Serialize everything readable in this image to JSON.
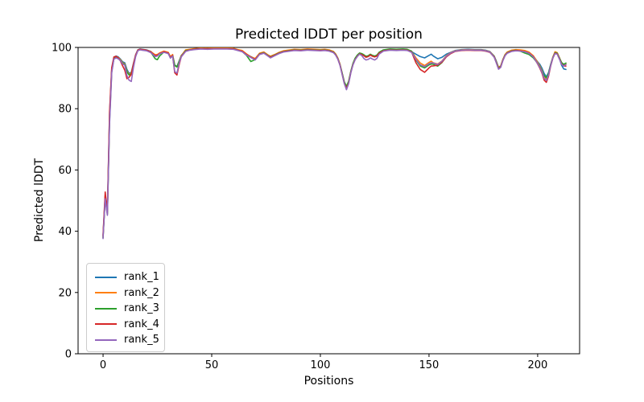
{
  "figure": {
    "title": "Predicted lDDT per position",
    "xlabel": "Positions",
    "ylabel": "Predicted lDDT"
  },
  "chart_data": {
    "type": "line",
    "title": "Predicted lDDT per position",
    "xlabel": "Positions",
    "ylabel": "Predicted lDDT",
    "xlim": [
      -11.5,
      219.3
    ],
    "ylim": [
      0,
      100
    ],
    "xticks": [
      0,
      50,
      100,
      150,
      200
    ],
    "yticks": [
      0,
      20,
      40,
      60,
      80,
      100
    ],
    "grid": false,
    "legend_position": "lower left",
    "background": "#ffffff",
    "spine_color": "#000000",
    "x": [
      0,
      1,
      2,
      3,
      4,
      5,
      6,
      7,
      8,
      9,
      10,
      11,
      12,
      13,
      14,
      15,
      16,
      17,
      18,
      20,
      22,
      24,
      25,
      26,
      28,
      30,
      31,
      32,
      33,
      34,
      35,
      36,
      38,
      40,
      42,
      45,
      48,
      51,
      54,
      57,
      60,
      62,
      64,
      66,
      68,
      70,
      72,
      74,
      76,
      77,
      79,
      81,
      83,
      85,
      88,
      91,
      94,
      97,
      100,
      102,
      104,
      106,
      107,
      108,
      109,
      110,
      111,
      112,
      113,
      114,
      115,
      116,
      117,
      118,
      119,
      120,
      121,
      122,
      123,
      124,
      125,
      126,
      127,
      129,
      132,
      135,
      138,
      140,
      142,
      144,
      146,
      148,
      150,
      151,
      152,
      154,
      156,
      158,
      160,
      162,
      165,
      168,
      171,
      174,
      176,
      178,
      180,
      181,
      182,
      183,
      184,
      185,
      186,
      188,
      190,
      192,
      194,
      196,
      198,
      200,
      201,
      202,
      203,
      204,
      205,
      206,
      207,
      208,
      209,
      210,
      211,
      212,
      213
    ],
    "series": [
      {
        "name": "rank_1",
        "color": "#1f77b4",
        "values": [
          38.3,
          51.6,
          46.2,
          78.0,
          93.0,
          96.8,
          97.2,
          96.9,
          96.2,
          95.3,
          95.0,
          92.8,
          91.5,
          91.9,
          94.8,
          97.6,
          99.2,
          99.5,
          99.4,
          99.2,
          98.7,
          97.2,
          97.4,
          98.1,
          98.7,
          98.3,
          96.9,
          97.6,
          94.2,
          93.8,
          95.6,
          97.4,
          98.9,
          99.3,
          99.5,
          99.7,
          99.6,
          99.7,
          99.7,
          99.7,
          99.6,
          99.2,
          98.9,
          97.8,
          97.0,
          96.3,
          98.0,
          98.4,
          97.4,
          97.0,
          97.6,
          98.3,
          98.8,
          99.0,
          99.3,
          99.2,
          99.4,
          99.3,
          99.2,
          99.3,
          99.1,
          98.6,
          97.8,
          96.5,
          94.5,
          91.5,
          88.5,
          87.0,
          88.7,
          92.0,
          94.6,
          96.3,
          97.3,
          98.0,
          97.8,
          97.4,
          96.9,
          97.1,
          97.6,
          97.2,
          97.0,
          97.3,
          98.2,
          99.0,
          99.3,
          99.2,
          99.3,
          99.2,
          98.6,
          97.8,
          97.0,
          96.6,
          97.4,
          97.8,
          97.2,
          96.3,
          96.8,
          97.8,
          98.4,
          99.0,
          99.3,
          99.4,
          99.3,
          99.3,
          99.1,
          98.7,
          97.2,
          95.5,
          93.5,
          93.9,
          96.0,
          97.6,
          98.4,
          99.0,
          99.2,
          99.1,
          98.9,
          98.4,
          97.2,
          95.3,
          94.5,
          93.2,
          91.5,
          90.4,
          91.8,
          94.5,
          96.8,
          98.2,
          98.0,
          96.5,
          94.2,
          93.0,
          92.8
        ]
      },
      {
        "name": "rank_2",
        "color": "#ff7f0e",
        "values": [
          38.0,
          51.3,
          45.8,
          77.0,
          92.6,
          96.6,
          97.0,
          96.7,
          96.0,
          95.0,
          94.6,
          92.2,
          91.2,
          91.6,
          94.5,
          97.4,
          99.1,
          99.4,
          99.3,
          99.1,
          98.6,
          97.6,
          97.7,
          98.2,
          98.8,
          98.4,
          97.0,
          97.7,
          94.0,
          93.7,
          95.4,
          97.3,
          99.2,
          99.4,
          99.6,
          99.8,
          99.7,
          99.8,
          99.8,
          99.8,
          99.7,
          99.3,
          99.0,
          97.9,
          96.9,
          96.4,
          98.1,
          98.5,
          97.5,
          97.1,
          97.7,
          98.4,
          98.9,
          99.1,
          99.4,
          99.3,
          99.5,
          99.4,
          99.3,
          99.4,
          99.2,
          98.7,
          97.9,
          96.6,
          94.6,
          91.6,
          88.6,
          87.1,
          88.8,
          92.1,
          94.7,
          96.4,
          97.4,
          98.1,
          97.9,
          97.5,
          97.0,
          97.2,
          97.7,
          97.3,
          97.1,
          97.4,
          98.3,
          99.1,
          99.4,
          99.3,
          99.4,
          99.3,
          98.7,
          96.6,
          94.9,
          94.1,
          95.1,
          95.5,
          95.0,
          94.6,
          95.6,
          97.3,
          98.3,
          98.9,
          99.2,
          99.3,
          99.2,
          99.2,
          99.0,
          98.6,
          97.1,
          95.3,
          93.5,
          94.0,
          96.1,
          97.7,
          98.5,
          99.1,
          99.3,
          99.2,
          99.0,
          98.5,
          97.3,
          95.1,
          93.9,
          92.4,
          90.6,
          89.7,
          91.2,
          94.3,
          96.9,
          98.6,
          98.3,
          96.7,
          95.0,
          94.2,
          94.6
        ]
      },
      {
        "name": "rank_3",
        "color": "#2ca02c",
        "values": [
          37.8,
          51.0,
          45.5,
          76.0,
          92.2,
          96.4,
          96.8,
          96.5,
          95.8,
          94.8,
          94.4,
          92.0,
          91.0,
          91.4,
          94.3,
          97.2,
          99.0,
          99.3,
          99.2,
          99.0,
          98.4,
          96.3,
          96.0,
          97.2,
          98.5,
          98.1,
          96.6,
          97.3,
          94.1,
          93.6,
          95.3,
          97.1,
          99.0,
          99.2,
          99.4,
          99.6,
          99.5,
          99.6,
          99.6,
          99.6,
          99.5,
          99.1,
          98.7,
          97.4,
          95.4,
          96.0,
          97.9,
          98.3,
          97.3,
          96.9,
          97.5,
          98.2,
          98.7,
          98.9,
          99.2,
          99.1,
          99.3,
          99.2,
          99.1,
          99.2,
          99.0,
          98.5,
          97.7,
          96.4,
          94.4,
          91.7,
          88.8,
          87.3,
          89.0,
          92.2,
          94.8,
          96.5,
          97.5,
          98.2,
          98.0,
          97.6,
          97.1,
          97.3,
          97.8,
          97.4,
          97.2,
          97.5,
          98.4,
          99.2,
          99.5,
          99.4,
          99.5,
          99.4,
          98.8,
          95.9,
          93.9,
          93.3,
          94.3,
          94.6,
          94.5,
          93.9,
          95.1,
          97.0,
          98.1,
          98.8,
          99.1,
          99.2,
          99.1,
          99.1,
          98.9,
          98.5,
          97.0,
          95.2,
          93.3,
          93.8,
          95.9,
          97.5,
          98.3,
          98.9,
          99.1,
          98.8,
          98.2,
          97.7,
          96.6,
          94.8,
          93.6,
          92.1,
          90.8,
          90.1,
          91.5,
          94.4,
          96.7,
          98.3,
          98.1,
          96.6,
          95.1,
          94.5,
          94.9
        ]
      },
      {
        "name": "rank_4",
        "color": "#d62728",
        "values": [
          38.6,
          52.8,
          46.6,
          79.0,
          93.4,
          96.9,
          97.1,
          96.6,
          95.6,
          94.0,
          92.6,
          89.8,
          90.3,
          91.2,
          94.6,
          97.5,
          99.1,
          99.4,
          99.3,
          99.1,
          98.5,
          97.3,
          97.5,
          98.0,
          98.6,
          98.2,
          96.7,
          97.4,
          91.7,
          91.0,
          94.3,
          97.0,
          98.8,
          99.2,
          99.4,
          99.6,
          99.5,
          99.6,
          99.6,
          99.6,
          99.5,
          99.1,
          98.8,
          97.7,
          96.8,
          96.1,
          97.8,
          98.2,
          97.2,
          96.8,
          97.4,
          98.1,
          98.6,
          98.8,
          99.1,
          99.0,
          99.2,
          99.1,
          99.0,
          99.1,
          98.9,
          98.4,
          97.6,
          96.3,
          94.3,
          91.3,
          88.3,
          86.6,
          88.4,
          91.8,
          94.4,
          96.1,
          97.1,
          97.9,
          97.7,
          97.3,
          96.8,
          97.0,
          97.5,
          97.1,
          96.9,
          97.2,
          98.1,
          98.9,
          99.2,
          99.1,
          99.2,
          99.1,
          98.5,
          95.0,
          92.8,
          91.9,
          93.3,
          93.9,
          94.0,
          94.2,
          95.2,
          96.9,
          98.0,
          98.7,
          99.0,
          99.1,
          99.0,
          99.0,
          98.8,
          98.4,
          96.9,
          95.0,
          93.1,
          93.6,
          95.8,
          97.4,
          98.2,
          98.8,
          99.0,
          98.9,
          98.7,
          98.2,
          97.0,
          94.6,
          93.2,
          91.6,
          89.3,
          88.6,
          90.6,
          94.0,
          96.5,
          98.1,
          97.9,
          96.3,
          94.6,
          94.0,
          93.9
        ]
      },
      {
        "name": "rank_5",
        "color": "#9467bd",
        "values": [
          37.6,
          50.6,
          45.2,
          75.0,
          91.8,
          96.2,
          96.6,
          96.3,
          95.7,
          94.6,
          94.2,
          90.8,
          89.3,
          88.9,
          93.5,
          97.0,
          98.9,
          99.2,
          99.1,
          98.9,
          98.3,
          97.0,
          97.2,
          97.9,
          98.4,
          98.0,
          96.5,
          97.2,
          92.1,
          91.6,
          94.8,
          96.9,
          98.7,
          99.1,
          99.3,
          99.5,
          99.4,
          99.5,
          99.5,
          99.5,
          99.4,
          99.0,
          98.6,
          97.5,
          96.7,
          95.9,
          97.7,
          98.1,
          97.1,
          96.6,
          97.3,
          98.0,
          98.5,
          98.7,
          99.0,
          98.9,
          99.1,
          99.0,
          98.9,
          99.0,
          98.8,
          98.3,
          97.5,
          96.2,
          94.2,
          91.2,
          88.2,
          86.2,
          88.2,
          91.7,
          94.3,
          96.0,
          97.0,
          97.8,
          97.4,
          96.4,
          95.9,
          96.1,
          96.6,
          96.2,
          95.9,
          96.4,
          97.8,
          98.8,
          99.1,
          99.0,
          99.1,
          99.0,
          98.4,
          96.1,
          94.3,
          93.7,
          94.7,
          95.0,
          94.9,
          94.4,
          95.5,
          97.1,
          98.2,
          98.8,
          99.1,
          99.2,
          99.1,
          99.1,
          98.9,
          98.5,
          96.8,
          94.9,
          92.9,
          93.5,
          95.7,
          97.3,
          98.1,
          98.7,
          98.9,
          98.8,
          98.6,
          98.1,
          96.9,
          94.7,
          93.4,
          91.9,
          89.9,
          89.2,
          91.0,
          94.1,
          96.6,
          98.0,
          97.8,
          96.2,
          94.5,
          93.9,
          94.4
        ]
      }
    ]
  }
}
